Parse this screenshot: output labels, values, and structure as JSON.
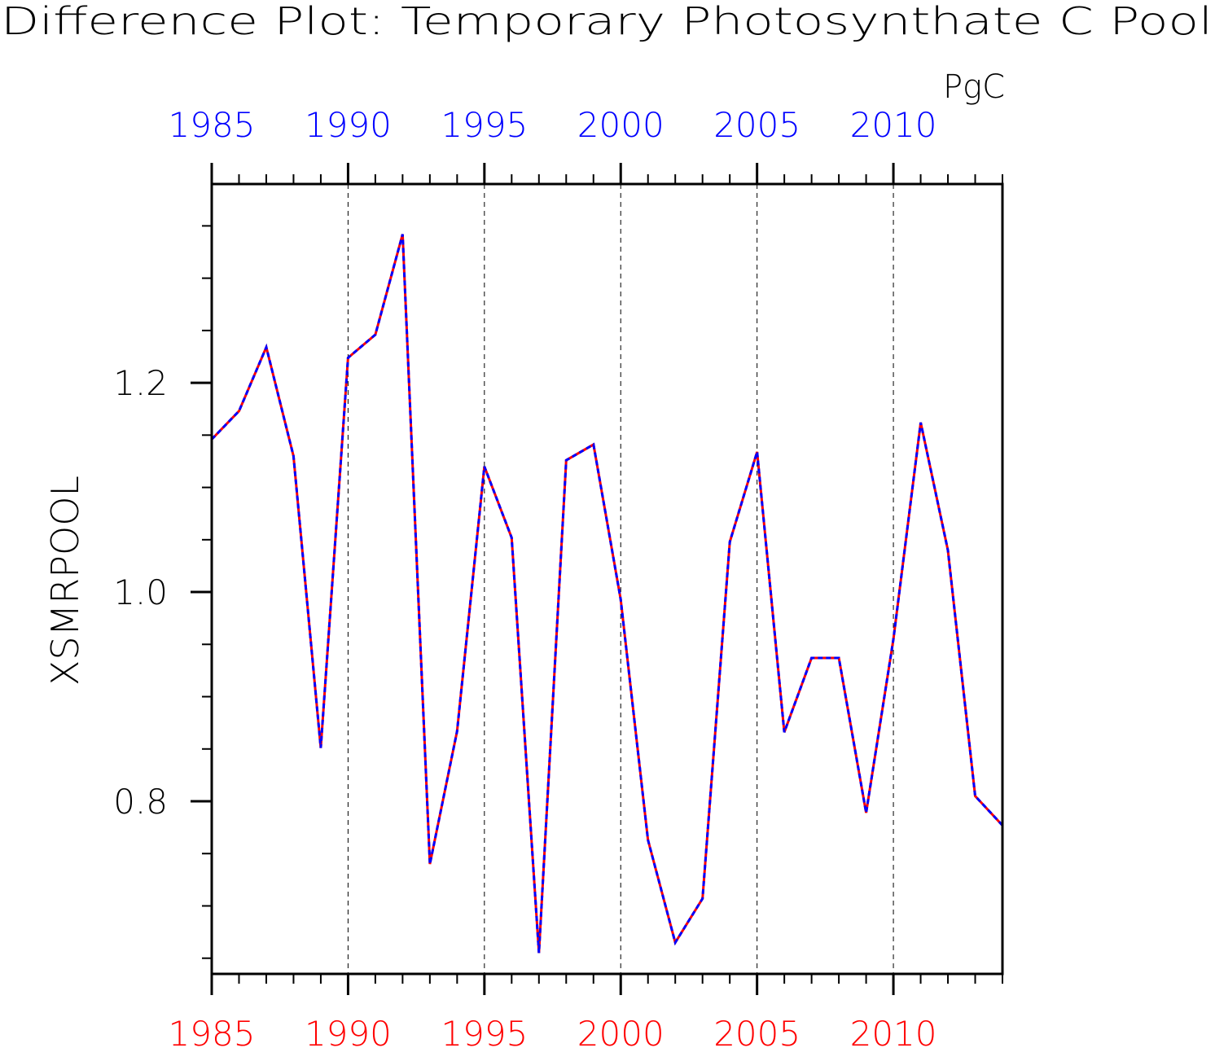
{
  "chart_data": {
    "type": "line",
    "title": "Difference Plot: Temporary Photosynthate C Pool",
    "units": "PgC",
    "ylabel": "XSMRPOOL",
    "xlabel": "",
    "xlim": [
      1985,
      2014
    ],
    "ylim": [
      0.635,
      1.39
    ],
    "x_ticks": [
      1985,
      1990,
      1995,
      2000,
      2005,
      2010
    ],
    "x_tick_labels": [
      "1985",
      "1990",
      "1995",
      "2000",
      "2005",
      "2010"
    ],
    "y_ticks": [
      0.8,
      1.0,
      1.2
    ],
    "y_tick_labels": [
      "0.8",
      "1.0",
      "1.2"
    ],
    "y_minor_step": 0.05,
    "grid": "vertical dashed at major x ticks",
    "colors": {
      "top_axis_labels": "#0000ff",
      "bottom_axis_labels": "#ff0000",
      "series_a": "#ff0000",
      "series_b": "#0000ff",
      "axes": "#000000"
    },
    "x": [
      1985,
      1986,
      1987,
      1988,
      1989,
      1990,
      1991,
      1992,
      1993,
      1994,
      1995,
      1996,
      1997,
      1998,
      1999,
      2000,
      2001,
      2002,
      2003,
      2004,
      2005,
      2006,
      2007,
      2008,
      2009,
      2010,
      2011,
      2012,
      2013,
      2014
    ],
    "series": [
      {
        "color": "#ff0000",
        "style": "solid",
        "values": [
          1.146,
          1.173,
          1.234,
          1.13,
          0.851,
          1.224,
          1.246,
          1.342,
          0.74,
          0.867,
          1.12,
          1.052,
          0.655,
          1.126,
          1.141,
          0.993,
          0.763,
          0.665,
          0.707,
          1.048,
          1.134,
          0.866,
          0.937,
          0.937,
          0.789,
          0.955,
          1.162,
          1.04,
          0.805,
          0.777
        ]
      },
      {
        "color": "#0000ff",
        "style": "dashed",
        "values": [
          1.146,
          1.173,
          1.234,
          1.13,
          0.851,
          1.224,
          1.246,
          1.342,
          0.74,
          0.867,
          1.12,
          1.052,
          0.655,
          1.126,
          1.141,
          0.993,
          0.763,
          0.665,
          0.707,
          1.048,
          1.134,
          0.866,
          0.937,
          0.937,
          0.789,
          0.955,
          1.162,
          1.04,
          0.805,
          0.777
        ]
      }
    ]
  }
}
